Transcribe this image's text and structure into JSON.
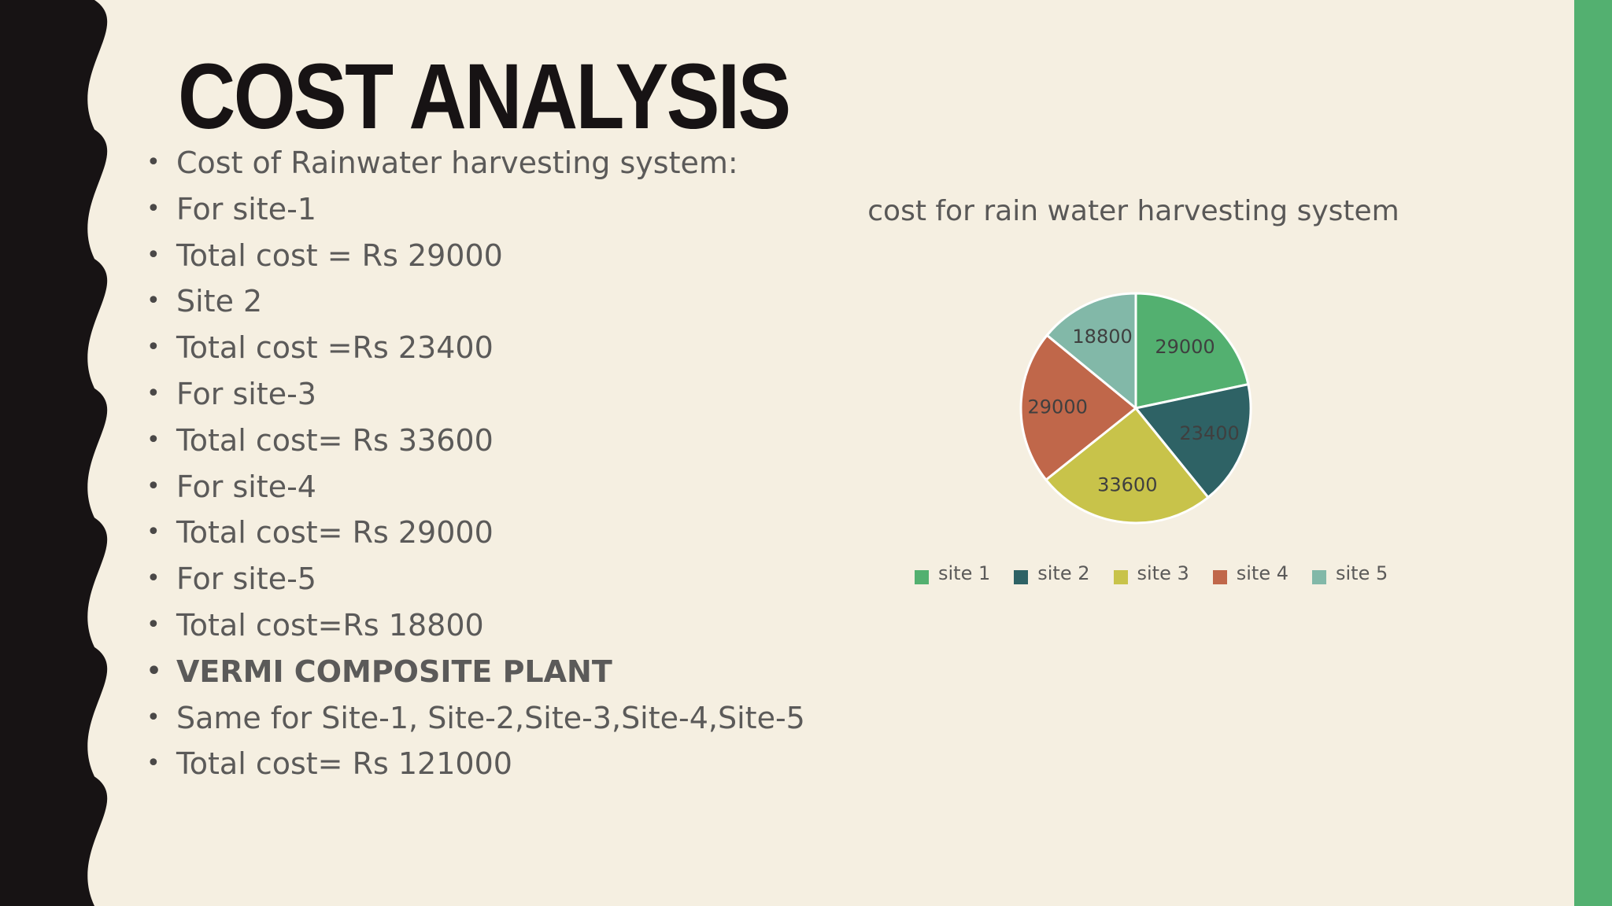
{
  "slide": {
    "title": "COST ANALYSIS",
    "bullets": [
      {
        "text": "Cost of Rainwater harvesting system:",
        "bold": false
      },
      {
        "text": "For site-1",
        "bold": false
      },
      {
        "text": "Total cost = Rs 29000",
        "bold": false
      },
      {
        "text": "Site 2",
        "bold": false
      },
      {
        "text": "Total cost =Rs 23400",
        "bold": false
      },
      {
        "text": "For site-3",
        "bold": false
      },
      {
        "text": "Total cost= Rs 33600",
        "bold": false
      },
      {
        "text": "For site-4",
        "bold": false
      },
      {
        "text": "Total cost= Rs 29000",
        "bold": false
      },
      {
        "text": "For site-5",
        "bold": false
      },
      {
        "text": "Total cost=Rs 18800",
        "bold": false
      },
      {
        "text": "VERMI COMPOSITE PLANT",
        "bold": true
      },
      {
        "text": "Same for Site-1, Site-2,Site-3,Site-4,Site-5",
        "bold": false
      },
      {
        "text": "Total cost= Rs 121000",
        "bold": false
      }
    ]
  },
  "colors": {
    "background": "#f5efe1",
    "left_band": "#171314",
    "right_band": "#53b070",
    "title": "#171314",
    "text": "#5b5a59"
  },
  "chart_data": {
    "type": "pie",
    "title": "cost for rain water harvesting system",
    "categories": [
      "site 1",
      "site 2",
      "site 3",
      "site 4",
      "site 5"
    ],
    "values": [
      29000,
      23400,
      33600,
      29000,
      18800
    ],
    "data_labels": [
      "29000",
      "23400",
      "33600",
      "29000",
      "18800"
    ],
    "colors": [
      "#53b070",
      "#2e6265",
      "#c8c34a",
      "#c0674a",
      "#82b8a8"
    ],
    "legend_position": "bottom"
  }
}
